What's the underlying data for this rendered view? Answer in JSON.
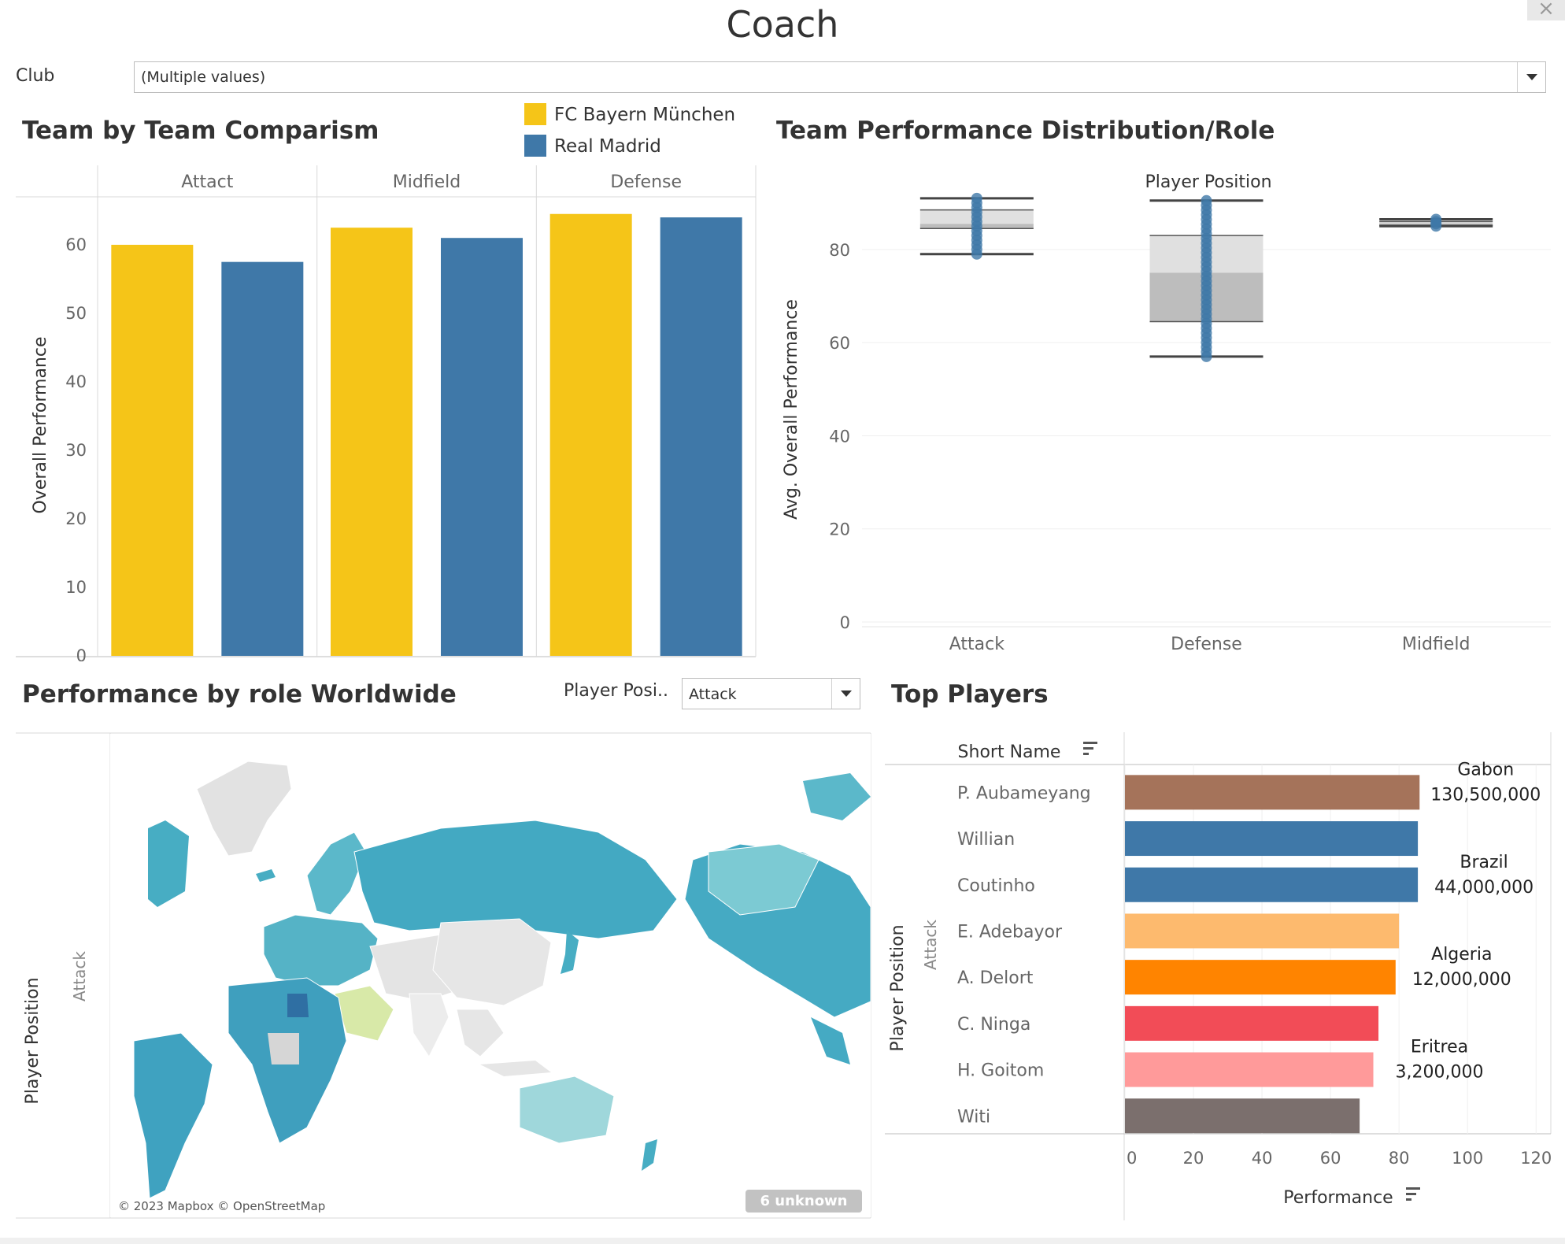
{
  "header": {
    "title": "Coach"
  },
  "filters": {
    "club_label": "Club",
    "club_value": "(Multiple values)",
    "player_position_label": "Player Posi..",
    "player_position_value": "Attack"
  },
  "colors": {
    "bayern": "#F5C518",
    "madrid": "#3F78A8"
  },
  "chart_data": [
    {
      "type": "bar",
      "title": "Team by Team Comparism",
      "ylabel": "Overall Performance",
      "ylim": [
        0,
        67
      ],
      "yticks": [
        0,
        10,
        20,
        30,
        40,
        50,
        60
      ],
      "panels": [
        "Attact",
        "Midfield",
        "Defense"
      ],
      "series": [
        {
          "name": "FC Bayern München",
          "color": "#F5C518",
          "values": [
            60,
            62.5,
            64.5
          ]
        },
        {
          "name": "Real Madrid",
          "color": "#3F78A8",
          "values": [
            57.5,
            61,
            64
          ]
        }
      ]
    },
    {
      "type": "box",
      "title": "Team Performance Distribution/Role",
      "header": "Player Position",
      "ylabel": "Avg. Overall Performance",
      "ylim": [
        0,
        93
      ],
      "yticks": [
        0,
        20,
        40,
        60,
        80
      ],
      "categories": [
        "Attack",
        "Defense",
        "Midfield"
      ],
      "boxes": [
        {
          "whisker_low": 79,
          "q1": 84.5,
          "median": 85.5,
          "q3": 88.5,
          "whisker_high": 91
        },
        {
          "whisker_low": 57,
          "q1": 64.5,
          "median": 75,
          "q3": 83,
          "whisker_high": 90.5
        },
        {
          "whisker_low": 85,
          "q1": 85.2,
          "median": 85.6,
          "q3": 86,
          "whisker_high": 86.5
        }
      ]
    },
    {
      "type": "map",
      "title": "Performance by role Worldwide",
      "row_header": "Player Position",
      "row_value": "Attack",
      "credit": "© 2023 Mapbox © OpenStreetMap",
      "unknown_badge": "6 unknown"
    },
    {
      "type": "bar",
      "orientation": "horizontal",
      "title": "Top Players",
      "column_header": "Short Name",
      "row_header": "Player Position",
      "row_value": "Attack",
      "xlabel": "Performance",
      "xlim": [
        0,
        125
      ],
      "xticks": [
        0,
        20,
        40,
        60,
        80,
        100,
        120
      ],
      "bars": [
        {
          "name": "P. Aubameyang",
          "value": 86,
          "color": "#A5735A",
          "country": "Gabon",
          "amount": "130,500,000"
        },
        {
          "name": "Willian",
          "value": 85.5,
          "color": "#3F78A8",
          "country": "",
          "amount": ""
        },
        {
          "name": "Coutinho",
          "value": 85.5,
          "color": "#3F78A8",
          "country": "Brazil",
          "amount": "44,000,000"
        },
        {
          "name": "E. Adebayor",
          "value": 80,
          "color": "#FDBA6E",
          "country": "",
          "amount": ""
        },
        {
          "name": "A. Delort",
          "value": 79,
          "color": "#FF8400",
          "country": "Algeria",
          "amount": "12,000,000"
        },
        {
          "name": "C. Ninga",
          "value": 74,
          "color": "#F24C57",
          "country": "",
          "amount": ""
        },
        {
          "name": "H. Goitom",
          "value": 72.5,
          "color": "#FF9A9A",
          "country": "Eritrea",
          "amount": "3,200,000"
        },
        {
          "name": "Witi",
          "value": 68.5,
          "color": "#7B6F6D",
          "country": "",
          "amount": ""
        }
      ]
    }
  ]
}
